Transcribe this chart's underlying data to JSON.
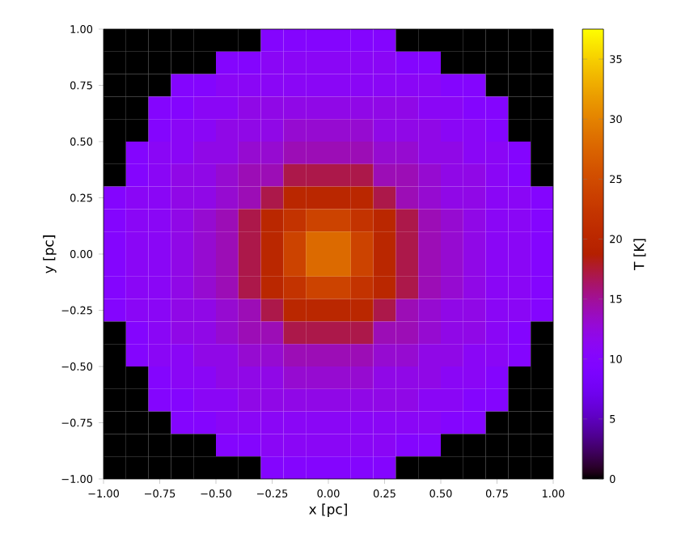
{
  "chart_data": {
    "type": "heatmap",
    "xlabel": "x [pc]",
    "ylabel": "y [pc]",
    "clabel": "T [K]",
    "xlim": [
      -1,
      1
    ],
    "ylim": [
      -1,
      1
    ],
    "xticks": [
      {
        "value": -1,
        "label": "−1.00"
      },
      {
        "value": -0.75,
        "label": "−0.75"
      },
      {
        "value": -0.5,
        "label": "−0.50"
      },
      {
        "value": -0.25,
        "label": "−0.25"
      },
      {
        "value": 0,
        "label": "0.00"
      },
      {
        "value": 0.25,
        "label": "0.25"
      },
      {
        "value": 0.5,
        "label": "0.50"
      },
      {
        "value": 0.75,
        "label": "0.75"
      },
      {
        "value": 1,
        "label": "1.00"
      }
    ],
    "yticks": [
      {
        "value": -1,
        "label": "−1.00"
      },
      {
        "value": -0.75,
        "label": "−0.75"
      },
      {
        "value": -0.5,
        "label": "−0.50"
      },
      {
        "value": -0.25,
        "label": "−0.25"
      },
      {
        "value": 0,
        "label": "0.00"
      },
      {
        "value": 0.25,
        "label": "0.25"
      },
      {
        "value": 0.5,
        "label": "0.50"
      },
      {
        "value": 0.75,
        "label": "0.75"
      },
      {
        "value": 1,
        "label": "1.00"
      }
    ],
    "clim": [
      0,
      37.5
    ],
    "cticks": [
      0,
      5,
      10,
      15,
      20,
      25,
      30,
      35
    ],
    "cells": [
      [
        0,
        0,
        0,
        0,
        0,
        0,
        0,
        10,
        10,
        10,
        10,
        10,
        10,
        0,
        0,
        0,
        0,
        0,
        0,
        0
      ],
      [
        0,
        0,
        0,
        0,
        0,
        10,
        10,
        11,
        11,
        11,
        11,
        11,
        11,
        10,
        10,
        0,
        0,
        0,
        0,
        0
      ],
      [
        0,
        0,
        0,
        10,
        10,
        11,
        11,
        11,
        11,
        11,
        11,
        11,
        11,
        11,
        11,
        10,
        10,
        0,
        0,
        0
      ],
      [
        0,
        0,
        10,
        10,
        11,
        11,
        12,
        12,
        12,
        12,
        12,
        12,
        12,
        12,
        11,
        11,
        10,
        10,
        0,
        0
      ],
      [
        0,
        0,
        10,
        11,
        11,
        12,
        12,
        12,
        13,
        13,
        13,
        13,
        12,
        12,
        12,
        11,
        11,
        10,
        0,
        0
      ],
      [
        0,
        10,
        11,
        11,
        12,
        12,
        13,
        13,
        14,
        14,
        14,
        14,
        13,
        13,
        12,
        12,
        11,
        11,
        10,
        0
      ],
      [
        0,
        10,
        11,
        12,
        12,
        13,
        14,
        14,
        17,
        17,
        17,
        17,
        14,
        14,
        13,
        12,
        12,
        11,
        10,
        0
      ],
      [
        10,
        11,
        11,
        12,
        12,
        13,
        14,
        17,
        20,
        20,
        20,
        20,
        17,
        14,
        13,
        12,
        12,
        11,
        11,
        10
      ],
      [
        10,
        11,
        11,
        12,
        13,
        14,
        17,
        20,
        22,
        24,
        24,
        22,
        20,
        17,
        14,
        13,
        12,
        11,
        11,
        10
      ],
      [
        10,
        11,
        11,
        12,
        13,
        14,
        17,
        20,
        24,
        28,
        28,
        24,
        20,
        17,
        14,
        13,
        12,
        11,
        11,
        10
      ],
      [
        10,
        11,
        11,
        12,
        13,
        14,
        17,
        20,
        24,
        28,
        28,
        24,
        20,
        17,
        14,
        13,
        12,
        11,
        11,
        10
      ],
      [
        10,
        11,
        11,
        12,
        13,
        14,
        17,
        20,
        22,
        24,
        24,
        22,
        20,
        17,
        14,
        13,
        12,
        11,
        11,
        10
      ],
      [
        10,
        11,
        11,
        12,
        12,
        13,
        14,
        17,
        20,
        20,
        20,
        20,
        17,
        14,
        13,
        12,
        12,
        11,
        11,
        10
      ],
      [
        0,
        10,
        11,
        12,
        12,
        13,
        14,
        14,
        17,
        17,
        17,
        17,
        14,
        14,
        13,
        12,
        12,
        11,
        10,
        0
      ],
      [
        0,
        10,
        11,
        11,
        12,
        12,
        13,
        13,
        14,
        14,
        14,
        14,
        13,
        13,
        12,
        12,
        11,
        11,
        10,
        0
      ],
      [
        0,
        0,
        10,
        11,
        11,
        12,
        12,
        12,
        13,
        13,
        13,
        13,
        12,
        12,
        12,
        11,
        11,
        10,
        0,
        0
      ],
      [
        0,
        0,
        10,
        10,
        11,
        11,
        12,
        12,
        12,
        12,
        12,
        12,
        12,
        12,
        11,
        11,
        10,
        10,
        0,
        0
      ],
      [
        0,
        0,
        0,
        10,
        10,
        11,
        11,
        11,
        11,
        11,
        11,
        11,
        11,
        11,
        11,
        10,
        10,
        0,
        0,
        0
      ],
      [
        0,
        0,
        0,
        0,
        0,
        10,
        10,
        11,
        11,
        11,
        11,
        11,
        11,
        10,
        10,
        0,
        0,
        0,
        0,
        0
      ],
      [
        0,
        0,
        0,
        0,
        0,
        0,
        0,
        10,
        10,
        10,
        10,
        10,
        10,
        0,
        0,
        0,
        0,
        0,
        0,
        0
      ]
    ]
  }
}
